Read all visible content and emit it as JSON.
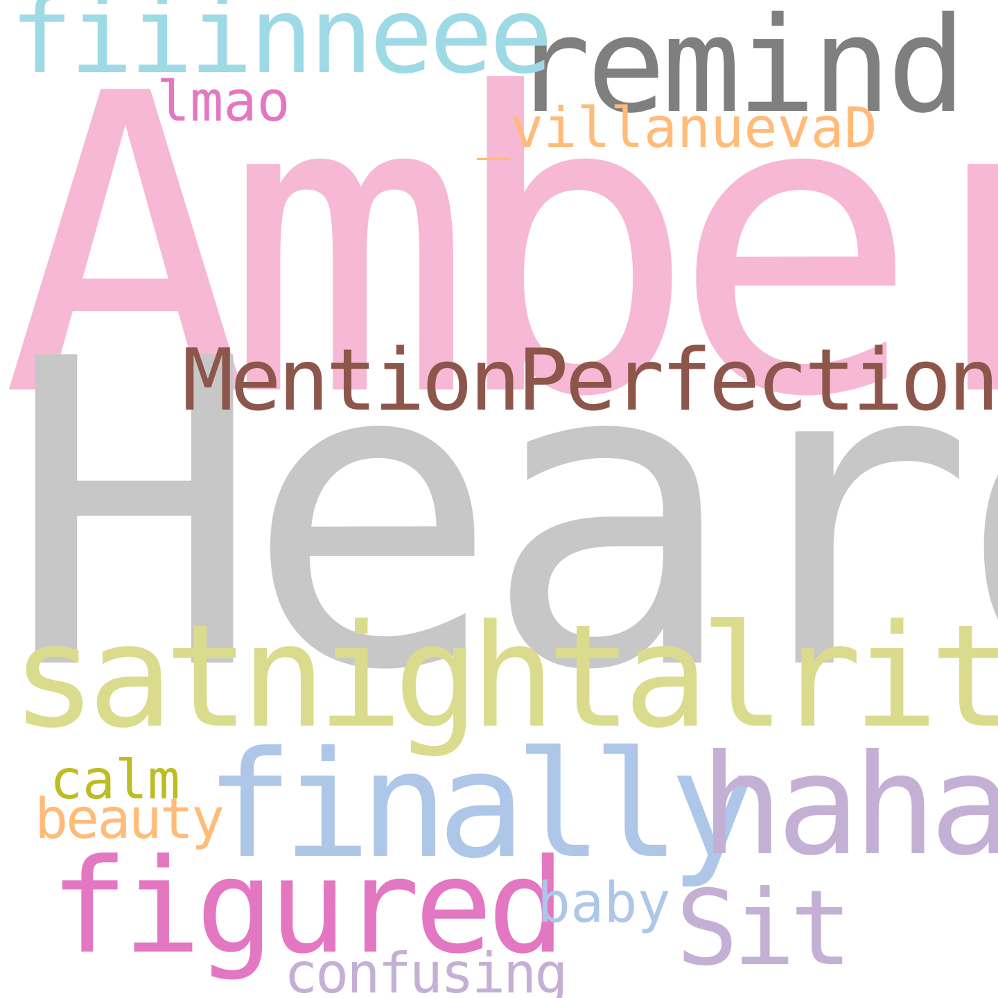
{
  "words": [
    {
      "id": "amber",
      "text": "Amber",
      "color": "#f6b8d4"
    },
    {
      "id": "heard",
      "text": "Heard",
      "color": "#c7c7c7"
    },
    {
      "id": "remind",
      "text": "remind",
      "color": "#7f7f7f"
    },
    {
      "id": "fiiinneee",
      "text": "fiiinneee",
      "color": "#9edae5"
    },
    {
      "id": "lmao",
      "text": "lmao",
      "color": "#e377c2"
    },
    {
      "id": "villanuevad",
      "text": "_villanuevaD",
      "color": "#ffbb78"
    },
    {
      "id": "mentionperfection",
      "text": "MentionPerfection",
      "color": "#8c564b"
    },
    {
      "id": "satnightalrite",
      "text": "satnightalrite",
      "color": "#dbdb8d"
    },
    {
      "id": "finally",
      "text": "finally",
      "color": "#aec7e8"
    },
    {
      "id": "haha",
      "text": "haha",
      "color": "#c5b0d5"
    },
    {
      "id": "calm",
      "text": "calm",
      "color": "#bcbd22"
    },
    {
      "id": "beauty",
      "text": "beauty",
      "color": "#ffbb78"
    },
    {
      "id": "figured",
      "text": "figured",
      "color": "#e377c2"
    },
    {
      "id": "baby",
      "text": "baby",
      "color": "#aec7e8"
    },
    {
      "id": "sit",
      "text": "Sit",
      "color": "#c5b0d5"
    },
    {
      "id": "confusing",
      "text": "confusing",
      "color": "#c5b0d5"
    }
  ]
}
